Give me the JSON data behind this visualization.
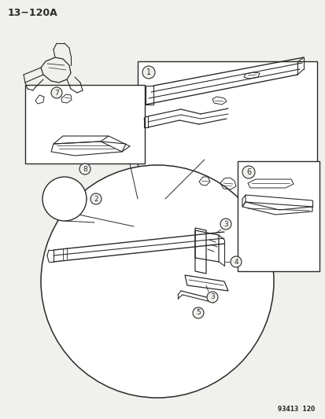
{
  "title": "13−120A",
  "footer": "93413  120",
  "bg_color": "#f0f0ec",
  "line_color": "#2a2a2a",
  "figsize": [
    4.14,
    5.33
  ],
  "dpi": 100
}
